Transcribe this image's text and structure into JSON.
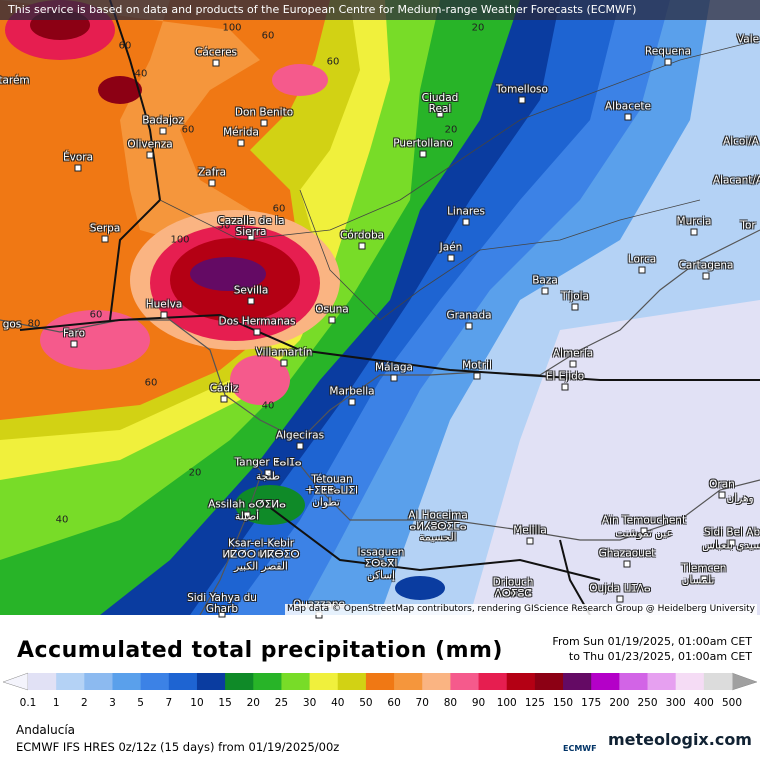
{
  "attribution_top": "This service is based on data and products of the European Centre for Medium-range Weather Forecasts (ECMWF)",
  "map": {
    "attribution": "Map data © OpenStreetMap contributors, rendering GIScience Research Group @ Heidelberg University",
    "cities": [
      "Cáceres",
      "Requena",
      "Vale",
      "Tomelloso",
      "Ciudad Real",
      "Albacete",
      "Don Benito",
      "Badajoz",
      "Mérida",
      "Puertollano",
      "Olivenza",
      "Alcoi/A",
      "Évora",
      "Zafra",
      "Alacant/A",
      "Linares",
      "Murcia",
      "Tor",
      "Cazalla de la Sierra",
      "Serpa",
      "Córdoba",
      "Cartagena",
      "Jaén",
      "Lorca",
      "Baza",
      "Sevilla",
      "Tíjola",
      "Osuna",
      "Huelva",
      "Granada",
      "Dos Hermanas",
      "Faro",
      "tarém",
      "gos",
      "Villamartín",
      "Almería",
      "Motril",
      "Málaga",
      "El Ejido",
      "Cádiz",
      "Marbella",
      "Algeciras",
      "Tanger ⵟⴰⵏⵊⴰ",
      "طنجة",
      "Tétouan",
      "ⵜⵉⵟⵟⴰⵡⵉⵏ",
      "تطوان",
      "Oran",
      "وهران",
      "Assilah ⴰⵚⵉⵍⴰ",
      "أصيلة",
      "Al Hoceima",
      "ⴰⵍⵃⵓⵙⵉⵎⴰ",
      "الحسيمة",
      "Aïn Temouchent",
      "عين تموشنت",
      "Sidi Bel Ab",
      "سيدي بلعباس",
      "Melilla",
      "Ksar-el-Kebir",
      "ⵍⵇⵚⵔ ⵍⴽⴱⵉⵔ",
      "القصر الكبير",
      "Issaguen",
      "ⵉⵙⴰⴳⵏ",
      "إساكن",
      "Ghazaouet",
      "Tlemcen",
      "تلمسان",
      "Driouch",
      "ⴷⵔⵢⵓⵛ",
      "Oujda ⵡⵊⴷⴰ",
      "Sidi Yahya du Gharb",
      "Ouazzane"
    ],
    "contours": [
      60,
      40,
      60,
      100,
      60,
      60,
      20,
      60,
      30,
      100,
      80,
      60,
      60,
      40,
      20,
      40,
      20
    ]
  },
  "legend": {
    "title": "Accumulated total precipitation (mm)",
    "period_from": "From Sun 01/19/2025, 01:00am CET",
    "period_to": "to Thu 01/23/2025, 01:00am CET",
    "labels": [
      0.1,
      1,
      2,
      3,
      5,
      7,
      10,
      15,
      20,
      25,
      30,
      40,
      50,
      60,
      70,
      80,
      90,
      100,
      125,
      150,
      175,
      200,
      250,
      300,
      400,
      500
    ],
    "colors": [
      "#e1e1f5",
      "#b4d2f5",
      "#8cbaf0",
      "#5aa0eb",
      "#3c82e6",
      "#1e64d2",
      "#0a3ca0",
      "#0f8a28",
      "#28b428",
      "#78dc28",
      "#f0f03c",
      "#d2d214",
      "#f07814",
      "#f5963c",
      "#fab482",
      "#f55a8c",
      "#e61e50",
      "#b40014",
      "#8c0014",
      "#640a64",
      "#b400c8",
      "#d264e6",
      "#e6a0f0",
      "#f5dcf5",
      "#dcdcdc"
    ]
  },
  "footer": {
    "region": "Andalucía",
    "model": "ECMWF IFS HRES 0z/12z (15 days) from 01/19/2025/00z",
    "logo_left": "ECMWF",
    "logo_right": "meteologix.com"
  }
}
